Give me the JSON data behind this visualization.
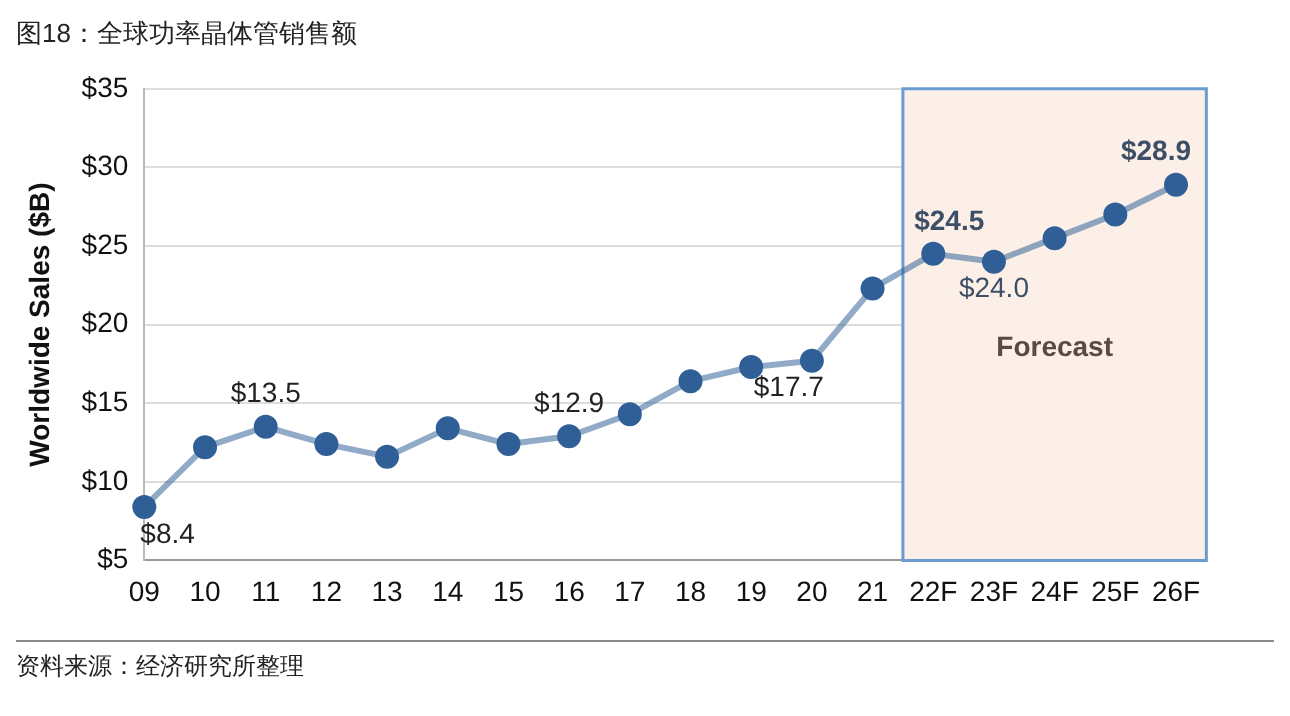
{
  "chart_data": {
    "type": "line",
    "title": "图18：全球功率晶体管销售额",
    "ylabel": "Worldwide Sales ($B)",
    "categories": [
      "09",
      "10",
      "11",
      "12",
      "13",
      "14",
      "15",
      "16",
      "17",
      "18",
      "19",
      "20",
      "21",
      "22F",
      "23F",
      "24F",
      "25F",
      "26F"
    ],
    "series": [
      {
        "color": "#2f5f96",
        "values": [
          8.4,
          12.2,
          13.5,
          12.4,
          11.6,
          13.4,
          12.4,
          12.9,
          14.3,
          16.4,
          17.3,
          17.7,
          22.3,
          24.5,
          24.0,
          25.5,
          27.0,
          28.9
        ],
        "value_labels": [
          "$8.4",
          null,
          "$13.5",
          null,
          null,
          null,
          null,
          "$12.9",
          null,
          null,
          null,
          "$17.7",
          null,
          "$24.5",
          "$24.0",
          null,
          null,
          "$28.9"
        ]
      }
    ],
    "ylim": [
      5,
      35
    ],
    "yticks": [
      {
        "value": 5,
        "label": "$5"
      },
      {
        "value": 10,
        "label": "$10"
      },
      {
        "value": 15,
        "label": "$15"
      },
      {
        "value": 20,
        "label": "$20"
      },
      {
        "value": 25,
        "label": "$25"
      },
      {
        "value": 30,
        "label": "$30"
      },
      {
        "value": 35,
        "label": "$35"
      }
    ],
    "grid": "y",
    "marker": "circle",
    "line_style": "solid",
    "legend": false,
    "bands": [
      {
        "axis": "x",
        "from": "22F",
        "to": "26F",
        "label": "Forecast",
        "color": "#fbefe8"
      }
    ],
    "annotations": [
      "资料来源：经济研究所整理"
    ]
  }
}
